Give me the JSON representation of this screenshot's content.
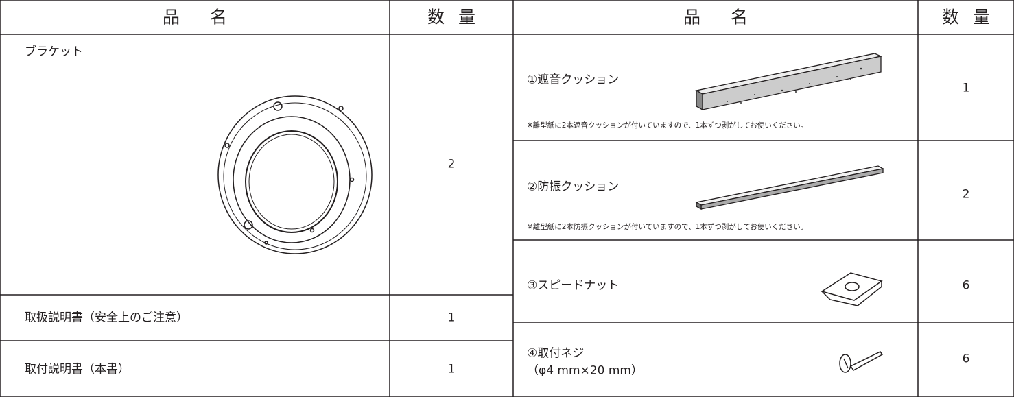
{
  "left_table": {
    "header": [
      "品名",
      "数量"
    ],
    "rows": [
      {
        "name": "ブラケット",
        "quantity": 2
      },
      {
        "name": "取扱説明書（安全上のご注意）",
        "quantity": 1
      },
      {
        "name": "取付説明書（本書）",
        "quantity": 1
      }
    ]
  },
  "right_table": {
    "header": [
      "品名",
      "数量"
    ],
    "rows": [
      {
        "name": "①遮音クッション",
        "note": "※離型紙に2本遮音クッションが付いていますので、1本ずつ剥がしてお使いください。",
        "quantity": 1
      },
      {
        "name": "②防振クッション",
        "note": "※離型紙に2本防振クッションが付いていますので、1本ずつ剥がしてお使いください。",
        "quantity": 2
      },
      {
        "name": "③スピードナット",
        "quantity": 6
      },
      {
        "name": "④取付ネジ",
        "spec": "（φ4 mm×20 mm）",
        "quantity": 6
      }
    ]
  }
}
